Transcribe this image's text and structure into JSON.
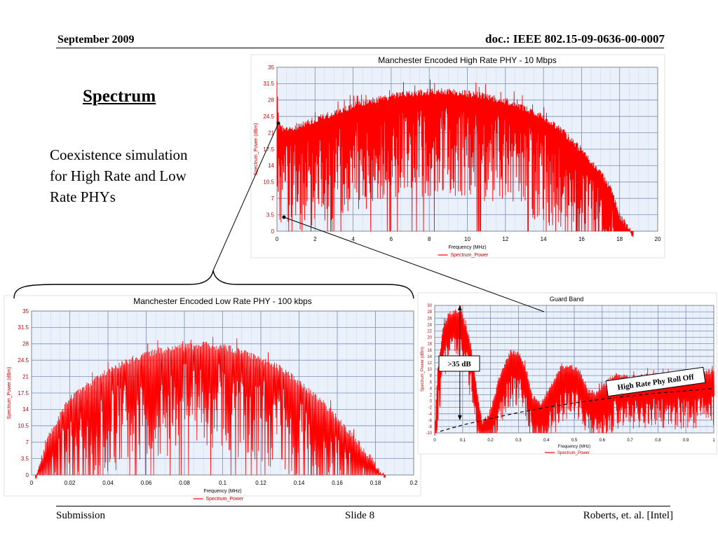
{
  "header": {
    "date": "September 2009",
    "doc_id": "doc.: IEEE 802.15-09-0636-00-0007"
  },
  "slide": {
    "title": "Spectrum",
    "body_lines": [
      "Coexistence simulation",
      "for High Rate and Low",
      "Rate PHYs"
    ]
  },
  "footer": {
    "left": "Submission",
    "center": "Slide 8",
    "right": "Roberts, et. al. [Intel]"
  },
  "colors": {
    "series": "#ff0000",
    "plot_bg": "#eaf1fb",
    "grid": "#7b8fb8",
    "axis_text": "#cc0000"
  },
  "annotations": {
    "guard_band": "Guard Band",
    "db_label": ">35 dB",
    "rolloff_label": "High Rate Phy Roll Off"
  },
  "chart_data": [
    {
      "type": "area",
      "title": "Manchester Encoded High Rate PHY - 10 Mbps",
      "xlabel": "Frequency (MHz)",
      "ylabel": "Spectrum_Power (dBm)",
      "legend": "Spectrum_Power",
      "legend_position": "bottom",
      "xlim": [
        0,
        20
      ],
      "ylim": [
        0,
        35
      ],
      "xticks": [
        "0",
        "2",
        "4",
        "6",
        "8",
        "10",
        "12",
        "14",
        "16",
        "18",
        "20"
      ],
      "yticks": [
        "0",
        "3.5",
        "7",
        "10.5",
        "14",
        "17.5",
        "21",
        "24.5",
        "28",
        "31.5",
        "35"
      ],
      "grid": true,
      "envelope": {
        "x": [
          0,
          0.1,
          0.5,
          1,
          2,
          3,
          4,
          5,
          6,
          7,
          8,
          9,
          10,
          11,
          12,
          13,
          14,
          15,
          16,
          17,
          17.5,
          18,
          18.5,
          18.7
        ],
        "y": [
          33,
          23,
          22.5,
          23,
          24.5,
          26,
          27.5,
          28.5,
          29.5,
          30,
          30.5,
          30.5,
          30,
          29.5,
          28.5,
          27,
          25,
          22,
          18,
          13,
          10,
          4,
          1,
          0
        ]
      }
    },
    {
      "type": "area",
      "title": "Manchester Encoded Low Rate PHY - 100 kbps",
      "xlabel": "Frequency (MHz)",
      "ylabel": "Spectrum_Power (dBm)",
      "legend": "Spectrum_Power",
      "legend_position": "bottom",
      "xlim": [
        0,
        0.2
      ],
      "ylim": [
        0,
        35
      ],
      "xticks": [
        "0",
        "0.02",
        "0.04",
        "0.06",
        "0.08",
        "0.1",
        "0.12",
        "0.14",
        "0.16",
        "0.18",
        "0.2"
      ],
      "yticks": [
        "0",
        "3.5",
        "7",
        "10.5",
        "14",
        "17.5",
        "21",
        "24.5",
        "28",
        "31.5",
        "35"
      ],
      "grid": true,
      "envelope": {
        "x": [
          0.002,
          0.01,
          0.02,
          0.03,
          0.04,
          0.05,
          0.06,
          0.07,
          0.08,
          0.09,
          0.1,
          0.11,
          0.12,
          0.13,
          0.14,
          0.15,
          0.16,
          0.17,
          0.18,
          0.185
        ],
        "y": [
          0,
          10,
          17,
          20,
          23,
          25,
          26.5,
          27.5,
          28,
          28.5,
          28,
          27,
          25.5,
          23.5,
          20.5,
          17,
          13,
          8,
          3,
          0
        ]
      }
    },
    {
      "type": "area",
      "title": "",
      "xlabel": "Frequency (MHz)",
      "ylabel": "Spectrum_Power (dBm)",
      "legend": "Spectrum_Power",
      "legend_position": "bottom",
      "xlim": [
        0,
        1
      ],
      "ylim": [
        -10,
        30
      ],
      "xticks": [
        "0",
        "0.1",
        "0.2",
        "0.3",
        "0.4",
        "0.5",
        "0.6",
        "0.7",
        "0.8",
        "0.9",
        "1"
      ],
      "yticks": [
        "-10",
        "-8",
        "-6",
        "-4",
        "-2",
        "0",
        "2",
        "4",
        "6",
        "8",
        "10",
        "12",
        "14",
        "16",
        "18",
        "20",
        "22",
        "24",
        "26",
        "28",
        "30"
      ],
      "grid": true,
      "envelope": {
        "x": [
          0,
          0.01,
          0.03,
          0.05,
          0.08,
          0.1,
          0.13,
          0.15,
          0.17,
          0.2,
          0.23,
          0.27,
          0.3,
          0.33,
          0.35,
          0.38,
          0.42,
          0.45,
          0.48,
          0.52,
          0.55,
          0.58,
          0.62,
          0.65,
          0.7,
          0.8,
          0.9,
          1.0
        ],
        "y": [
          -10,
          10,
          24,
          28,
          29,
          28,
          18,
          5,
          -6,
          -3,
          8,
          16,
          16,
          10,
          2,
          0,
          6,
          11,
          12,
          10,
          4,
          3,
          7,
          9,
          8,
          9,
          9,
          10
        ]
      },
      "rolloff_curve": {
        "x": [
          0.02,
          0.1,
          0.2,
          0.3,
          0.4,
          0.5,
          0.6,
          0.7,
          0.8,
          0.9,
          1.0
        ],
        "y": [
          -9.5,
          -7.5,
          -5.5,
          -3.6,
          -2,
          -0.6,
          0.6,
          1.6,
          2.5,
          3.2,
          4
        ]
      },
      "db_span": {
        "from": 30,
        "to": -6,
        "x": 0.09
      }
    }
  ]
}
